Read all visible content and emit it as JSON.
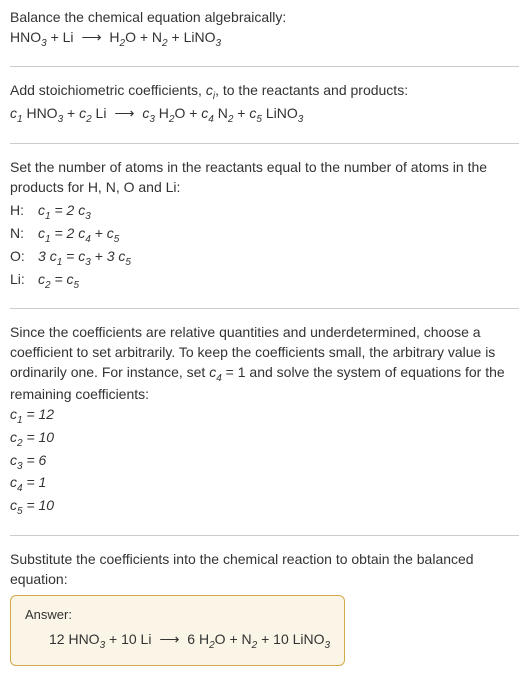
{
  "sec1": {
    "line1": "Balance the chemical equation algebraically:",
    "eq": "HNO₃ + Li ⟶ H₂O + N₂ + LiNO₃"
  },
  "sec2": {
    "line1_a": "Add stoichiometric coefficients, ",
    "line1_ci": "cᵢ",
    "line1_b": ", to the reactants and products:",
    "eq_html": "<span class=\"italic\">c</span><sub>1</sub> HNO<sub>3</sub> + <span class=\"italic\">c</span><sub>2</sub> Li <span class=\"arrow\">⟶</span> <span class=\"italic\">c</span><sub>3</sub> H<sub>2</sub>O + <span class=\"italic\">c</span><sub>4</sub> N<sub>2</sub> + <span class=\"italic\">c</span><sub>5</sub> LiNO<sub>3</sub>"
  },
  "sec3": {
    "para": "Set the number of atoms in the reactants equal to the number of atoms in the products for H, N, O and Li:",
    "rows": [
      {
        "label": "H:",
        "expr_html": "<span class=\"italic\">c</span><sub>1</sub> = 2 <span class=\"italic\">c</span><sub>3</sub>"
      },
      {
        "label": "N:",
        "expr_html": "<span class=\"italic\">c</span><sub>1</sub> = 2 <span class=\"italic\">c</span><sub>4</sub> + <span class=\"italic\">c</span><sub>5</sub>"
      },
      {
        "label": "O:",
        "expr_html": "3 <span class=\"italic\">c</span><sub>1</sub> = <span class=\"italic\">c</span><sub>3</sub> + 3 <span class=\"italic\">c</span><sub>5</sub>"
      },
      {
        "label": "Li:",
        "expr_html": "<span class=\"italic\">c</span><sub>2</sub> = <span class=\"italic\">c</span><sub>5</sub>"
      }
    ]
  },
  "sec4": {
    "para_html": "Since the coefficients are relative quantities and underdetermined, choose a coefficient to set arbitrarily. To keep the coefficients small, the arbitrary value is ordinarily one. For instance, set <span class=\"italic\">c</span><sub>4</sub> = 1 and solve the system of equations for the remaining coefficients:",
    "coefs": [
      {
        "html": "<span class=\"italic\">c</span><sub>1</sub> = 12"
      },
      {
        "html": "<span class=\"italic\">c</span><sub>2</sub> = 10"
      },
      {
        "html": "<span class=\"italic\">c</span><sub>3</sub> = 6"
      },
      {
        "html": "<span class=\"italic\">c</span><sub>4</sub> = 1"
      },
      {
        "html": "<span class=\"italic\">c</span><sub>5</sub> = 10"
      }
    ]
  },
  "sec5": {
    "para": "Substitute the coefficients into the chemical reaction to obtain the balanced equation:",
    "answer_label": "Answer:",
    "answer_html": "12 HNO<sub>3</sub> + 10 Li <span class=\"arrow\">⟶</span> 6 H<sub>2</sub>O + N<sub>2</sub> + 10 LiNO<sub>3</sub>"
  },
  "colors": {
    "divider": "#cccccc",
    "box_border": "#d4a94a",
    "box_bg": "#faf5e6",
    "text": "#333333",
    "bg": "#ffffff"
  },
  "fontsize_pt": 10.5
}
